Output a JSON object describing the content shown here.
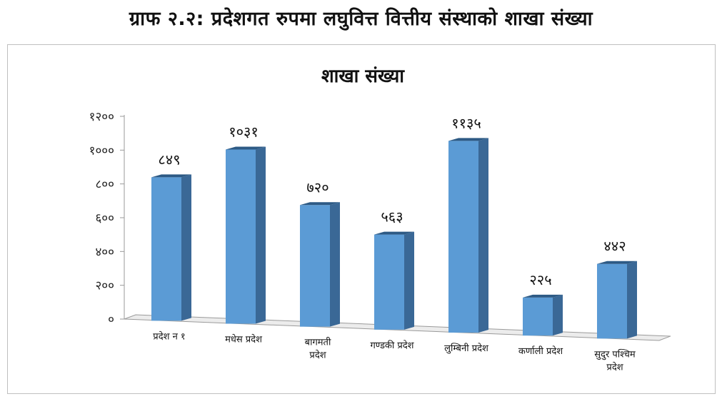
{
  "page": {
    "title": "ग्राफ २.२: प्रदेशगत रुपमा लघुवित्त वित्तीय संस्थाको शाखा संख्या"
  },
  "chart_data": {
    "type": "bar",
    "title": "शाखा संख्या",
    "xlabel": "",
    "ylabel": "",
    "ylim": [
      0,
      1200
    ],
    "yticks": [
      0,
      200,
      400,
      600,
      800,
      1000,
      1200
    ],
    "ytick_labels": [
      "०",
      "२००",
      "४००",
      "६००",
      "८००",
      "१०००",
      "१२००"
    ],
    "categories": [
      [
        "प्रदेश न १"
      ],
      [
        "मधेस प्रदेश"
      ],
      [
        "बागमती",
        "प्रदेश"
      ],
      [
        "गण्डकी प्रदेश"
      ],
      [
        "लुम्बिनी प्रदेश"
      ],
      [
        "कर्णाली प्रदेश"
      ],
      [
        "सुदुर पश्चिम",
        "प्रदेश"
      ]
    ],
    "values": [
      849,
      1031,
      720,
      563,
      1135,
      225,
      442
    ],
    "value_labels": [
      "८४९",
      "१०३१",
      "७२०",
      "५६३",
      "११३५",
      "२२५",
      "४४२"
    ],
    "bar_color": "#5b9bd5",
    "bar_side_color": "#3a6896",
    "bar_top_color": "#2d5a85",
    "grid": false,
    "legend": "none"
  }
}
